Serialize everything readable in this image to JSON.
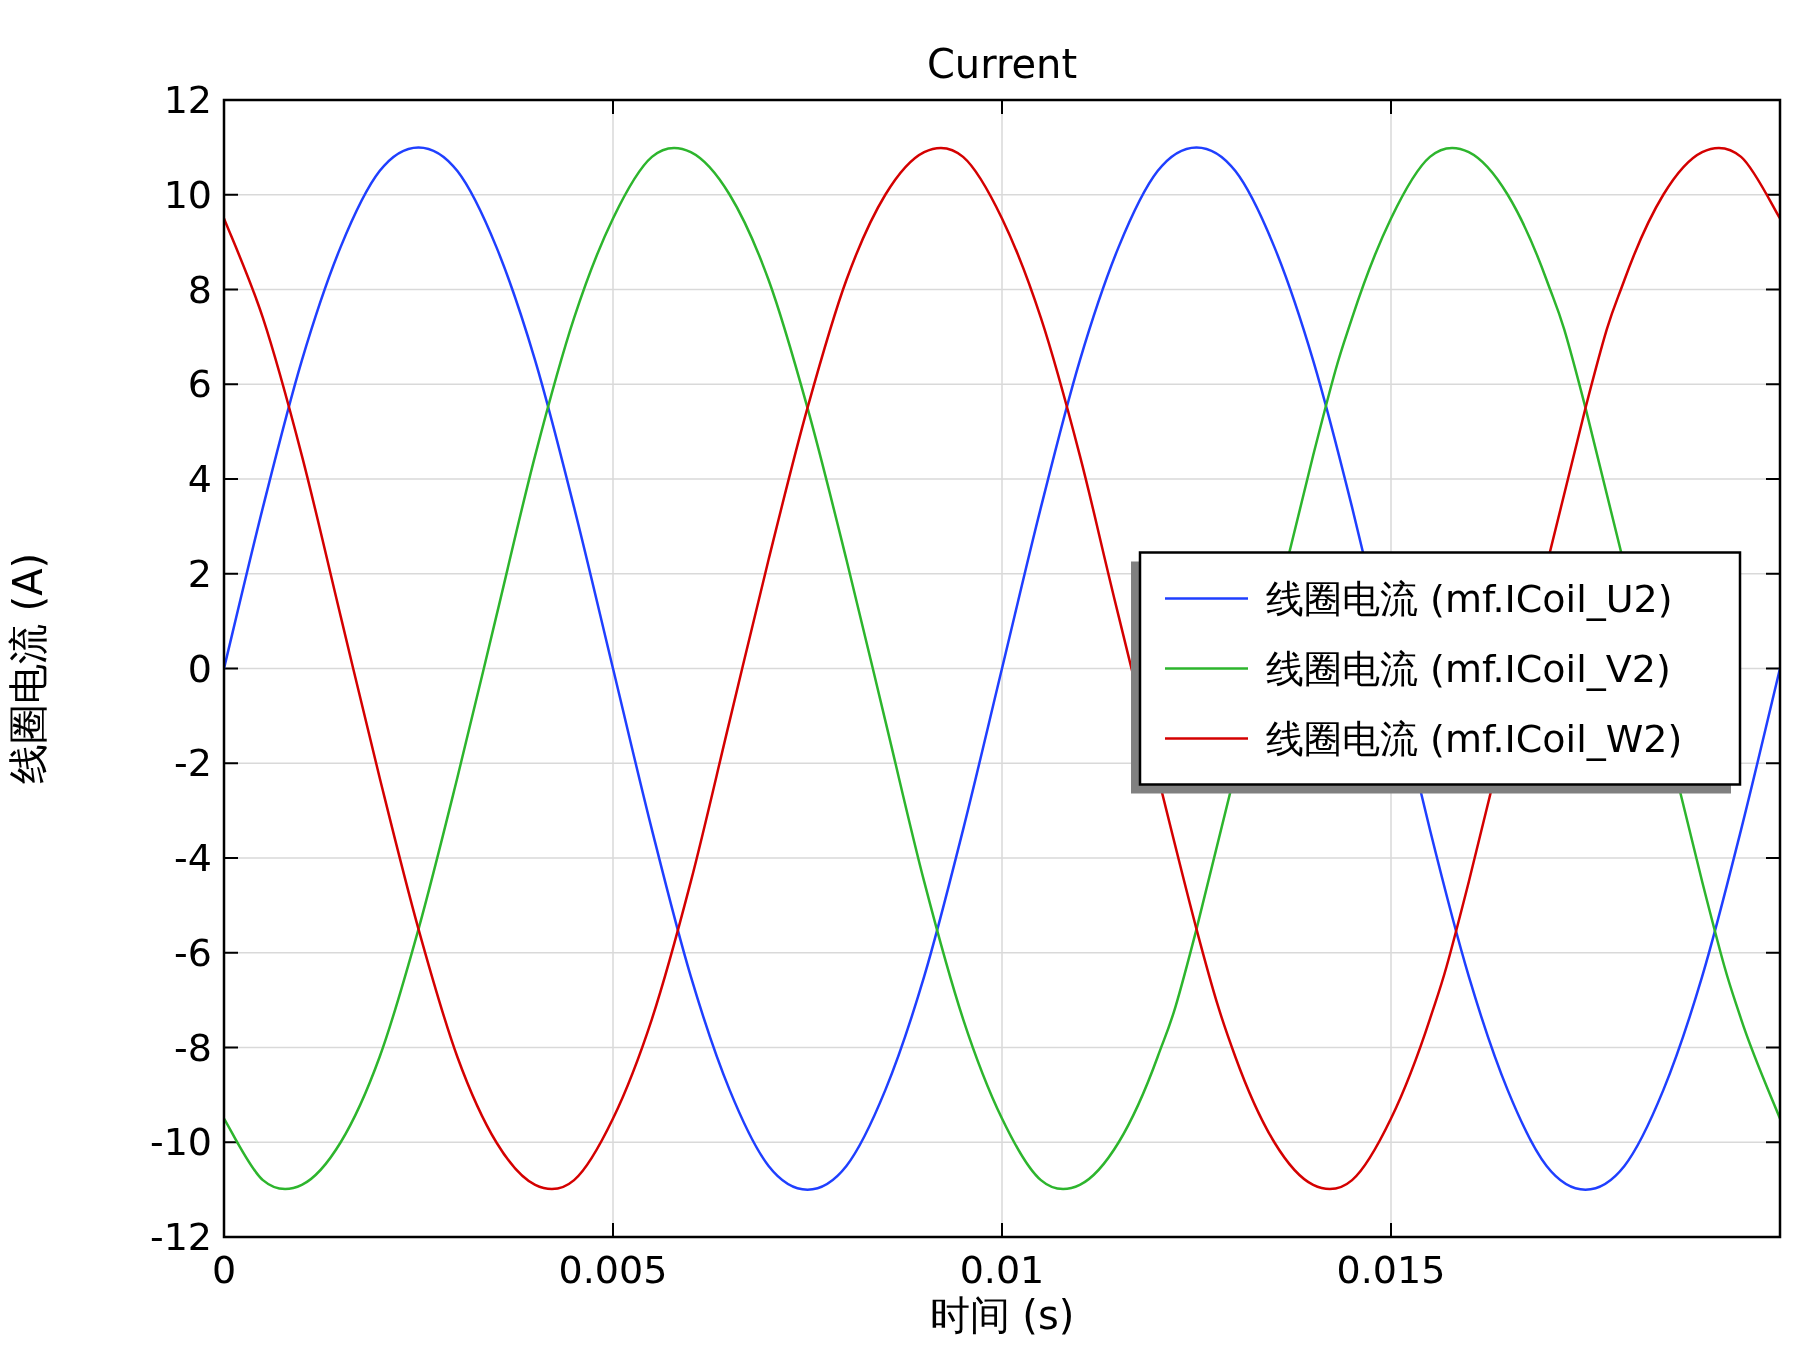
{
  "chart_data": {
    "type": "line",
    "title": "Current",
    "xlabel": "时间 (s)",
    "ylabel": "线圈电流 (A)",
    "x": [
      0,
      0.0005,
      0.001,
      0.0015,
      0.002,
      0.0025,
      0.003,
      0.0035,
      0.004,
      0.0045,
      0.005,
      0.0055,
      0.006,
      0.0065,
      0.007,
      0.0075,
      0.008,
      0.0085,
      0.009,
      0.0095,
      0.01,
      0.0105,
      0.011,
      0.0115,
      0.012,
      0.0125,
      0.013,
      0.0135,
      0.014,
      0.0145,
      0.015,
      0.0155,
      0.016,
      0.0165,
      0.017,
      0.0175,
      0.018,
      0.0185,
      0.019,
      0.0195,
      0.02
    ],
    "series": [
      {
        "name": "线圈电流 (mf.ICoil_U2)",
        "color": "#1f3fff",
        "values": [
          0,
          3.4,
          6.5,
          8.9,
          10.5,
          11,
          10.5,
          8.9,
          6.5,
          3.4,
          0,
          -3.4,
          -6.5,
          -8.9,
          -10.5,
          -11,
          -10.5,
          -8.9,
          -6.5,
          -3.4,
          0,
          3.4,
          6.5,
          8.9,
          10.5,
          11,
          10.5,
          8.9,
          6.5,
          3.4,
          null,
          -3.4,
          -6.5,
          -8.9,
          -10.5,
          -11,
          -10.5,
          -8.9,
          -6.5,
          -3.4,
          0
        ]
      },
      {
        "name": "线圈电流 (mf.ICoil_V2)",
        "color": "#2db52d",
        "values": [
          -9.5,
          -10.8,
          -10.9,
          -10.0,
          -8.2,
          -5.5,
          -2.3,
          1.1,
          4.5,
          7.4,
          9.5,
          10.8,
          10.9,
          10.0,
          8.2,
          5.5,
          2.3,
          -1.1,
          -4.5,
          -7.4,
          -9.5,
          -10.8,
          -10.9,
          -10.0,
          -8.2,
          -5.5,
          null,
          null,
          4.5,
          7.4,
          9.5,
          10.8,
          10.9,
          10.0,
          8.2,
          5.5,
          null,
          null,
          -4.5,
          -7.4,
          -9.5
        ]
      },
      {
        "name": "线圈电流 (mf.ICoil_W2)",
        "color": "#d40000",
        "values": [
          9.5,
          7.4,
          4.5,
          1.1,
          -2.3,
          -5.5,
          -8.2,
          -10.0,
          -10.9,
          -10.8,
          -9.5,
          -7.4,
          -4.5,
          -1.1,
          2.3,
          5.5,
          8.2,
          10.0,
          10.9,
          10.8,
          9.5,
          7.4,
          4.5,
          1.1,
          null,
          -5.5,
          -8.2,
          -10.0,
          -10.9,
          -10.8,
          -9.5,
          -7.4,
          -4.5,
          null,
          null,
          5.5,
          8.2,
          10.0,
          10.9,
          10.8,
          9.5
        ]
      }
    ],
    "xlim": [
      0,
      0.02
    ],
    "xticks": [
      0,
      0.005,
      0.01,
      0.015
    ],
    "ylim": [
      -12,
      12
    ],
    "yticks": [
      -12,
      -10,
      -8,
      -6,
      -4,
      -2,
      0,
      2,
      4,
      6,
      8,
      10,
      12
    ],
    "grid": true,
    "legend": "right",
    "line_style": "solid",
    "marker": "none"
  }
}
